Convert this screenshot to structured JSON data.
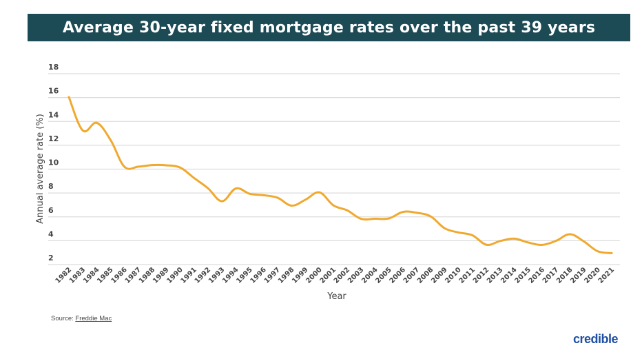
{
  "chart_data": {
    "type": "line",
    "title": "Average 30-year fixed mortgage rates over the past 39 years",
    "xlabel": "Year",
    "ylabel": "Annual average rate (%)",
    "ylim": [
      2,
      18
    ],
    "yticks": [
      2,
      4,
      6,
      8,
      10,
      12,
      14,
      16,
      18
    ],
    "grid": true,
    "line_color": "#f0a92e",
    "x": [
      "1982",
      "1983",
      "1984",
      "1985",
      "1986",
      "1987",
      "1988",
      "1989",
      "1990",
      "1991",
      "1992",
      "1993",
      "1994",
      "1995",
      "1996",
      "1997",
      "1998",
      "1999",
      "2000",
      "2001",
      "2002",
      "2003",
      "2004",
      "2005",
      "2006",
      "2007",
      "2008",
      "2009",
      "2010",
      "2011",
      "2012",
      "2013",
      "2014",
      "2015",
      "2016",
      "2017",
      "2018",
      "2019",
      "2020",
      "2021"
    ],
    "values": [
      16.04,
      13.24,
      13.88,
      12.43,
      10.19,
      10.21,
      10.34,
      10.32,
      10.13,
      9.25,
      8.39,
      7.31,
      8.38,
      7.93,
      7.81,
      7.6,
      6.94,
      7.44,
      8.05,
      6.97,
      6.54,
      5.83,
      5.84,
      5.87,
      6.41,
      6.34,
      6.03,
      5.04,
      4.69,
      4.45,
      3.66,
      3.98,
      4.17,
      3.85,
      3.65,
      3.99,
      4.54,
      3.94,
      3.11,
      2.96
    ]
  },
  "source": {
    "prefix": "Source: ",
    "link": "Freddie Mac"
  },
  "brand": {
    "logo_text": "credible",
    "banner_color": "#1c4a55",
    "logo_color": "#1f4fa3"
  }
}
